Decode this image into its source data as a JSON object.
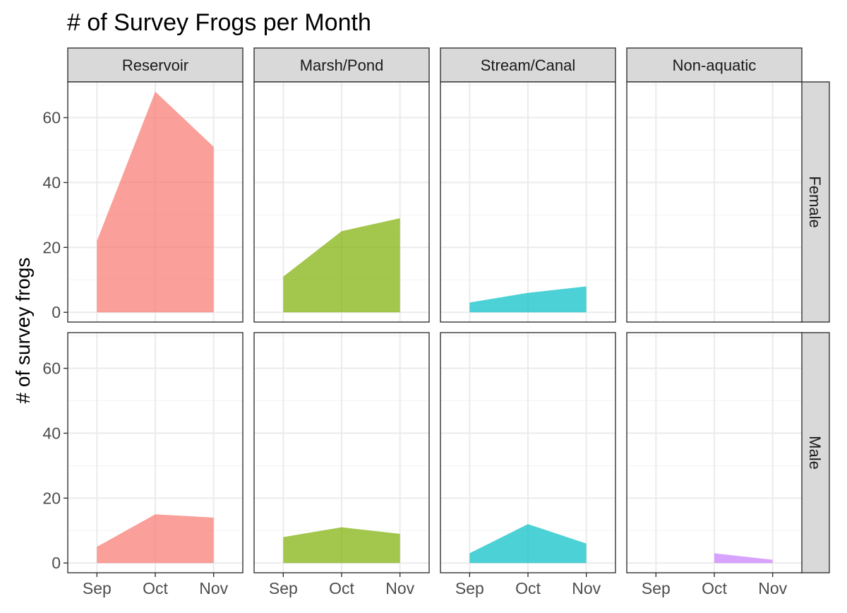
{
  "chart_data": {
    "type": "area",
    "title": "# of Survey Frogs per Month",
    "xlabel": "",
    "ylabel": "# of survey frogs",
    "x_categories": [
      "Sep",
      "Oct",
      "Nov"
    ],
    "yticks": [
      0,
      20,
      40,
      60
    ],
    "ylim": [
      -3,
      71
    ],
    "grid": true,
    "legend": "none",
    "facet_columns": [
      "Reservoir",
      "Marsh/Pond",
      "Stream/Canal",
      "Non-aquatic"
    ],
    "facet_rows": [
      "Female",
      "Male"
    ],
    "colors": {
      "Reservoir": "#F8766D",
      "Marsh/Pond": "#7CAE00",
      "Stream/Canal": "#00BFC4",
      "Non-aquatic": "#C77CFF"
    },
    "panels": [
      {
        "column": "Reservoir",
        "row": "Female",
        "x": [
          "Sep",
          "Oct",
          "Nov"
        ],
        "y": [
          22,
          68,
          51
        ]
      },
      {
        "column": "Marsh/Pond",
        "row": "Female",
        "x": [
          "Sep",
          "Oct",
          "Nov"
        ],
        "y": [
          11,
          25,
          29
        ]
      },
      {
        "column": "Stream/Canal",
        "row": "Female",
        "x": [
          "Sep",
          "Oct",
          "Nov"
        ],
        "y": [
          3,
          6,
          8
        ]
      },
      {
        "column": "Non-aquatic",
        "row": "Female",
        "x": [],
        "y": []
      },
      {
        "column": "Reservoir",
        "row": "Male",
        "x": [
          "Sep",
          "Oct",
          "Nov"
        ],
        "y": [
          5,
          15,
          14
        ]
      },
      {
        "column": "Marsh/Pond",
        "row": "Male",
        "x": [
          "Sep",
          "Oct",
          "Nov"
        ],
        "y": [
          8,
          11,
          9
        ]
      },
      {
        "column": "Stream/Canal",
        "row": "Male",
        "x": [
          "Sep",
          "Oct",
          "Nov"
        ],
        "y": [
          3,
          12,
          6
        ]
      },
      {
        "column": "Non-aquatic",
        "row": "Male",
        "x": [
          "Oct",
          "Nov"
        ],
        "y": [
          3,
          1
        ]
      }
    ]
  }
}
